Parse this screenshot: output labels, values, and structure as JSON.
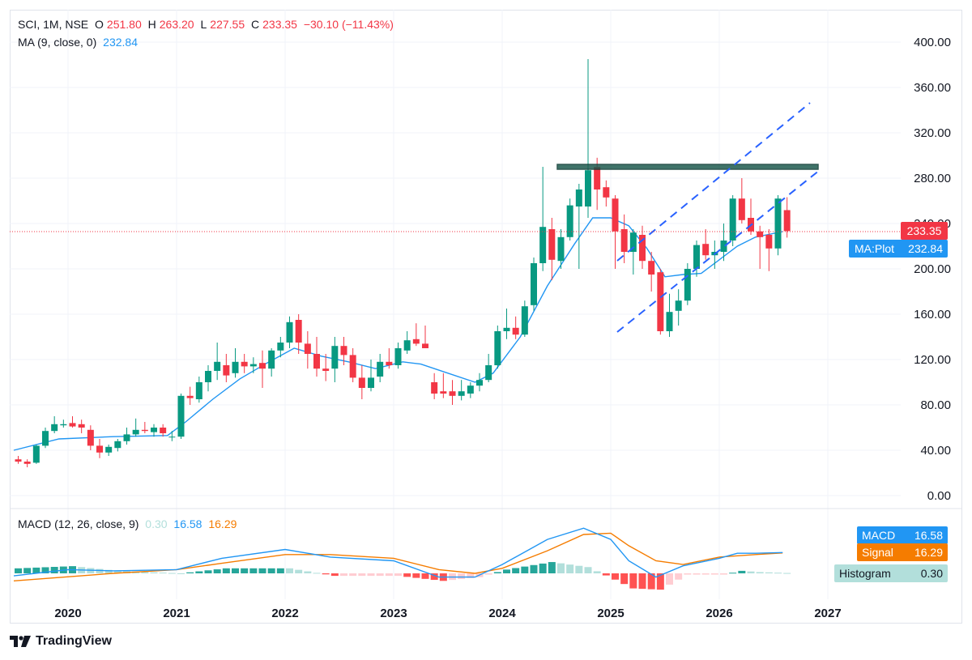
{
  "header": {
    "symbol": "SCI, 1M, NSE",
    "o_label": "O",
    "o_value": "251.80",
    "h_label": "H",
    "h_value": "263.20",
    "l_label": "L",
    "l_value": "227.55",
    "c_label": "C",
    "c_value": "233.35",
    "change": "−30.10 (−11.43%)",
    "ma_label": "MA (9, close, 0)",
    "ma_value": "232.84",
    "macd_label": "MACD (12, 26, close, 9)",
    "macd_hist_value": "0.30",
    "macd_value": "16.58",
    "macd_signal_value": "16.29"
  },
  "badges": {
    "price": "233.35",
    "ma": "MA:Plot",
    "ma_value": "232.84",
    "macd": "MACD",
    "macd_value": "16.58",
    "signal": "Signal",
    "signal_value": "16.29",
    "histogram": "Histogram",
    "histogram_value": "0.30"
  },
  "footer": {
    "brand": "TradingView"
  },
  "colors": {
    "up": "#089981",
    "down": "#f23645",
    "ma": "#2196f3",
    "signal": "#f57c00",
    "hist_up": "#26a69a",
    "hist_up_light": "#b2dfdb",
    "hist_down": "#ff5252",
    "hist_down_light": "#ffcdd2",
    "trendline": "#2962ff",
    "zone": "#1e5b4f"
  },
  "chart_data": {
    "type": "candlestick",
    "y_ticks": [
      "0.00",
      "40.00",
      "80.00",
      "120.00",
      "160.00",
      "200.00",
      "240.00",
      "280.00",
      "320.00",
      "360.00",
      "400.00"
    ],
    "ylim": [
      0,
      400
    ],
    "x_ticks": [
      "2020",
      "2021",
      "2022",
      "2023",
      "2024",
      "2025",
      "2026",
      "2027"
    ],
    "candles": [
      {
        "d": "2019-07",
        "o": 32,
        "h": 35,
        "l": 28,
        "c": 30
      },
      {
        "d": "2019-08",
        "o": 30,
        "h": 32,
        "l": 25,
        "c": 28
      },
      {
        "d": "2019-09",
        "o": 29,
        "h": 45,
        "l": 28,
        "c": 44
      },
      {
        "d": "2019-10",
        "o": 44,
        "h": 60,
        "l": 42,
        "c": 57
      },
      {
        "d": "2019-11",
        "o": 57,
        "h": 70,
        "l": 55,
        "c": 63
      },
      {
        "d": "2019-12",
        "o": 62,
        "h": 67,
        "l": 60,
        "c": 63
      },
      {
        "d": "2020-01",
        "o": 64,
        "h": 70,
        "l": 60,
        "c": 61
      },
      {
        "d": "2020-02",
        "o": 63,
        "h": 67,
        "l": 55,
        "c": 60
      },
      {
        "d": "2020-03",
        "o": 58,
        "h": 62,
        "l": 40,
        "c": 44
      },
      {
        "d": "2020-04",
        "o": 44,
        "h": 50,
        "l": 33,
        "c": 38
      },
      {
        "d": "2020-05",
        "o": 38,
        "h": 45,
        "l": 35,
        "c": 43
      },
      {
        "d": "2020-06",
        "o": 42,
        "h": 50,
        "l": 39,
        "c": 48
      },
      {
        "d": "2020-07",
        "o": 48,
        "h": 60,
        "l": 45,
        "c": 54
      },
      {
        "d": "2020-08",
        "o": 54,
        "h": 68,
        "l": 52,
        "c": 58
      },
      {
        "d": "2020-09",
        "o": 58,
        "h": 65,
        "l": 55,
        "c": 57
      },
      {
        "d": "2020-10",
        "o": 56,
        "h": 63,
        "l": 52,
        "c": 60
      },
      {
        "d": "2020-11",
        "o": 60,
        "h": 63,
        "l": 52,
        "c": 55
      },
      {
        "d": "2020-12",
        "o": 52,
        "h": 57,
        "l": 48,
        "c": 52
      },
      {
        "d": "2021-01",
        "o": 52,
        "h": 90,
        "l": 50,
        "c": 88
      },
      {
        "d": "2021-02",
        "o": 88,
        "h": 96,
        "l": 80,
        "c": 86
      },
      {
        "d": "2021-03",
        "o": 85,
        "h": 105,
        "l": 82,
        "c": 100
      },
      {
        "d": "2021-04",
        "o": 100,
        "h": 115,
        "l": 92,
        "c": 110
      },
      {
        "d": "2021-05",
        "o": 110,
        "h": 135,
        "l": 102,
        "c": 118
      },
      {
        "d": "2021-06",
        "o": 115,
        "h": 125,
        "l": 100,
        "c": 106
      },
      {
        "d": "2021-07",
        "o": 108,
        "h": 130,
        "l": 104,
        "c": 118
      },
      {
        "d": "2021-08",
        "o": 118,
        "h": 125,
        "l": 108,
        "c": 114
      },
      {
        "d": "2021-09",
        "o": 114,
        "h": 122,
        "l": 108,
        "c": 116
      },
      {
        "d": "2021-10",
        "o": 117,
        "h": 128,
        "l": 95,
        "c": 112
      },
      {
        "d": "2021-11",
        "o": 112,
        "h": 130,
        "l": 105,
        "c": 128
      },
      {
        "d": "2021-12",
        "o": 128,
        "h": 140,
        "l": 122,
        "c": 135
      },
      {
        "d": "2022-01",
        "o": 135,
        "h": 158,
        "l": 130,
        "c": 153
      },
      {
        "d": "2022-02",
        "o": 155,
        "h": 160,
        "l": 125,
        "c": 135
      },
      {
        "d": "2022-03",
        "o": 134,
        "h": 145,
        "l": 112,
        "c": 125
      },
      {
        "d": "2022-04",
        "o": 125,
        "h": 140,
        "l": 105,
        "c": 112
      },
      {
        "d": "2022-05",
        "o": 112,
        "h": 125,
        "l": 101,
        "c": 110
      },
      {
        "d": "2022-06",
        "o": 112,
        "h": 140,
        "l": 100,
        "c": 132
      },
      {
        "d": "2022-07",
        "o": 132,
        "h": 140,
        "l": 115,
        "c": 124
      },
      {
        "d": "2022-08",
        "o": 124,
        "h": 130,
        "l": 100,
        "c": 104
      },
      {
        "d": "2022-09",
        "o": 104,
        "h": 115,
        "l": 85,
        "c": 95
      },
      {
        "d": "2022-10",
        "o": 95,
        "h": 120,
        "l": 92,
        "c": 104
      },
      {
        "d": "2022-11",
        "o": 105,
        "h": 125,
        "l": 100,
        "c": 118
      },
      {
        "d": "2022-12",
        "o": 118,
        "h": 130,
        "l": 112,
        "c": 115
      },
      {
        "d": "2023-01",
        "o": 115,
        "h": 135,
        "l": 112,
        "c": 130
      },
      {
        "d": "2023-02",
        "o": 128,
        "h": 145,
        "l": 125,
        "c": 137
      },
      {
        "d": "2023-03",
        "o": 138,
        "h": 152,
        "l": 132,
        "c": 134
      },
      {
        "d": "2023-04",
        "o": 134,
        "h": 150,
        "l": 130,
        "c": 130
      },
      {
        "d": "2023-05",
        "o": 100,
        "h": 108,
        "l": 85,
        "c": 90
      },
      {
        "d": "2023-06",
        "o": 92,
        "h": 108,
        "l": 86,
        "c": 90
      },
      {
        "d": "2023-07",
        "o": 92,
        "h": 102,
        "l": 80,
        "c": 88
      },
      {
        "d": "2023-08",
        "o": 88,
        "h": 102,
        "l": 84,
        "c": 92
      },
      {
        "d": "2023-09",
        "o": 90,
        "h": 100,
        "l": 86,
        "c": 97
      },
      {
        "d": "2023-10",
        "o": 97,
        "h": 108,
        "l": 92,
        "c": 102
      },
      {
        "d": "2023-11",
        "o": 102,
        "h": 125,
        "l": 100,
        "c": 115
      },
      {
        "d": "2023-12",
        "o": 115,
        "h": 150,
        "l": 112,
        "c": 145
      },
      {
        "d": "2024-01",
        "o": 145,
        "h": 165,
        "l": 138,
        "c": 148
      },
      {
        "d": "2024-02",
        "o": 148,
        "h": 158,
        "l": 138,
        "c": 142
      },
      {
        "d": "2024-03",
        "o": 142,
        "h": 172,
        "l": 140,
        "c": 167
      },
      {
        "d": "2024-04",
        "o": 168,
        "h": 210,
        "l": 163,
        "c": 205
      },
      {
        "d": "2024-05",
        "o": 205,
        "h": 290,
        "l": 198,
        "c": 237
      },
      {
        "d": "2024-06",
        "o": 235,
        "h": 245,
        "l": 190,
        "c": 208
      },
      {
        "d": "2024-07",
        "o": 207,
        "h": 235,
        "l": 200,
        "c": 228
      },
      {
        "d": "2024-08",
        "o": 228,
        "h": 262,
        "l": 225,
        "c": 256
      },
      {
        "d": "2024-09",
        "o": 255,
        "h": 275,
        "l": 200,
        "c": 270
      },
      {
        "d": "2024-10",
        "o": 255,
        "h": 385,
        "l": 245,
        "c": 287
      },
      {
        "d": "2024-11",
        "o": 290,
        "h": 298,
        "l": 252,
        "c": 270
      },
      {
        "d": "2024-12",
        "o": 272,
        "h": 278,
        "l": 255,
        "c": 263
      },
      {
        "d": "2025-01",
        "o": 262,
        "h": 265,
        "l": 200,
        "c": 233
      },
      {
        "d": "2025-02",
        "o": 235,
        "h": 248,
        "l": 205,
        "c": 215
      },
      {
        "d": "2025-03",
        "o": 215,
        "h": 235,
        "l": 195,
        "c": 232
      },
      {
        "d": "2025-04",
        "o": 230,
        "h": 238,
        "l": 200,
        "c": 207
      },
      {
        "d": "2025-05",
        "o": 207,
        "h": 215,
        "l": 180,
        "c": 195
      },
      {
        "d": "2025-06",
        "o": 197,
        "h": 200,
        "l": 142,
        "c": 145
      },
      {
        "d": "2025-07",
        "o": 145,
        "h": 178,
        "l": 140,
        "c": 162
      },
      {
        "d": "2025-08",
        "o": 163,
        "h": 182,
        "l": 150,
        "c": 172
      },
      {
        "d": "2025-09",
        "o": 172,
        "h": 205,
        "l": 168,
        "c": 200
      },
      {
        "d": "2025-10",
        "o": 200,
        "h": 225,
        "l": 193,
        "c": 221
      },
      {
        "d": "2025-11",
        "o": 222,
        "h": 235,
        "l": 208,
        "c": 212
      },
      {
        "d": "2025-12",
        "o": 212,
        "h": 225,
        "l": 200,
        "c": 215
      },
      {
        "d": "2026-01",
        "o": 215,
        "h": 240,
        "l": 207,
        "c": 225
      },
      {
        "d": "2026-02",
        "o": 225,
        "h": 265,
        "l": 220,
        "c": 262
      },
      {
        "d": "2026-03",
        "o": 262,
        "h": 280,
        "l": 240,
        "c": 243
      },
      {
        "d": "2026-04",
        "o": 245,
        "h": 262,
        "l": 230,
        "c": 233
      },
      {
        "d": "2026-05",
        "o": 233,
        "h": 238,
        "l": 200,
        "c": 228
      },
      {
        "d": "2026-06",
        "o": 230,
        "h": 235,
        "l": 198,
        "c": 218
      },
      {
        "d": "2026-07",
        "o": 218,
        "h": 265,
        "l": 212,
        "c": 262
      },
      {
        "d": "2026-08",
        "o": 251.8,
        "h": 263.2,
        "l": 227.55,
        "c": 233.35
      }
    ],
    "ma": [
      [
        "2019-07",
        40
      ],
      [
        "2019-12",
        50
      ],
      [
        "2020-06",
        52
      ],
      [
        "2020-12",
        53
      ],
      [
        "2021-02",
        65
      ],
      [
        "2021-05",
        85
      ],
      [
        "2021-08",
        103
      ],
      [
        "2021-11",
        117
      ],
      [
        "2022-02",
        130
      ],
      [
        "2022-05",
        123
      ],
      [
        "2022-08",
        118
      ],
      [
        "2022-11",
        112
      ],
      [
        "2023-02",
        118
      ],
      [
        "2023-04",
        116
      ],
      [
        "2023-07",
        108
      ],
      [
        "2023-10",
        100
      ],
      [
        "2023-12",
        108
      ],
      [
        "2024-03",
        140
      ],
      [
        "2024-06",
        185
      ],
      [
        "2024-09",
        222
      ],
      [
        "2024-11",
        245
      ],
      [
        "2025-01",
        245
      ],
      [
        "2025-03",
        238
      ],
      [
        "2025-05",
        218
      ],
      [
        "2025-07",
        193
      ],
      [
        "2025-09",
        195
      ],
      [
        "2025-11",
        196
      ],
      [
        "2026-01",
        208
      ],
      [
        "2026-03",
        220
      ],
      [
        "2026-05",
        228
      ],
      [
        "2026-08",
        232.84
      ]
    ],
    "macd": {
      "macd": [
        [
          "2019-07",
          -2
        ],
        [
          "2020-01",
          3
        ],
        [
          "2020-06",
          2
        ],
        [
          "2021-01",
          3
        ],
        [
          "2021-06",
          12
        ],
        [
          "2022-01",
          19
        ],
        [
          "2022-06",
          13
        ],
        [
          "2023-01",
          10
        ],
        [
          "2023-06",
          -3
        ],
        [
          "2023-10",
          -3
        ],
        [
          "2024-01",
          7
        ],
        [
          "2024-06",
          27
        ],
        [
          "2024-10",
          36
        ],
        [
          "2025-01",
          27
        ],
        [
          "2025-03",
          10
        ],
        [
          "2025-06",
          -3
        ],
        [
          "2025-09",
          6
        ],
        [
          "2026-01",
          12
        ],
        [
          "2026-03",
          16
        ],
        [
          "2026-05",
          16
        ],
        [
          "2026-08",
          16.58
        ]
      ],
      "signal": [
        [
          "2019-07",
          -6
        ],
        [
          "2020-06",
          0
        ],
        [
          "2021-01",
          3
        ],
        [
          "2021-06",
          8
        ],
        [
          "2022-01",
          15
        ],
        [
          "2022-06",
          15
        ],
        [
          "2023-01",
          12
        ],
        [
          "2023-06",
          3
        ],
        [
          "2023-10",
          0
        ],
        [
          "2024-01",
          4
        ],
        [
          "2024-06",
          18
        ],
        [
          "2024-10",
          31
        ],
        [
          "2025-01",
          32
        ],
        [
          "2025-03",
          22
        ],
        [
          "2025-06",
          10
        ],
        [
          "2025-09",
          7
        ],
        [
          "2026-01",
          13
        ],
        [
          "2026-05",
          15
        ],
        [
          "2026-08",
          16.29
        ]
      ]
    }
  }
}
